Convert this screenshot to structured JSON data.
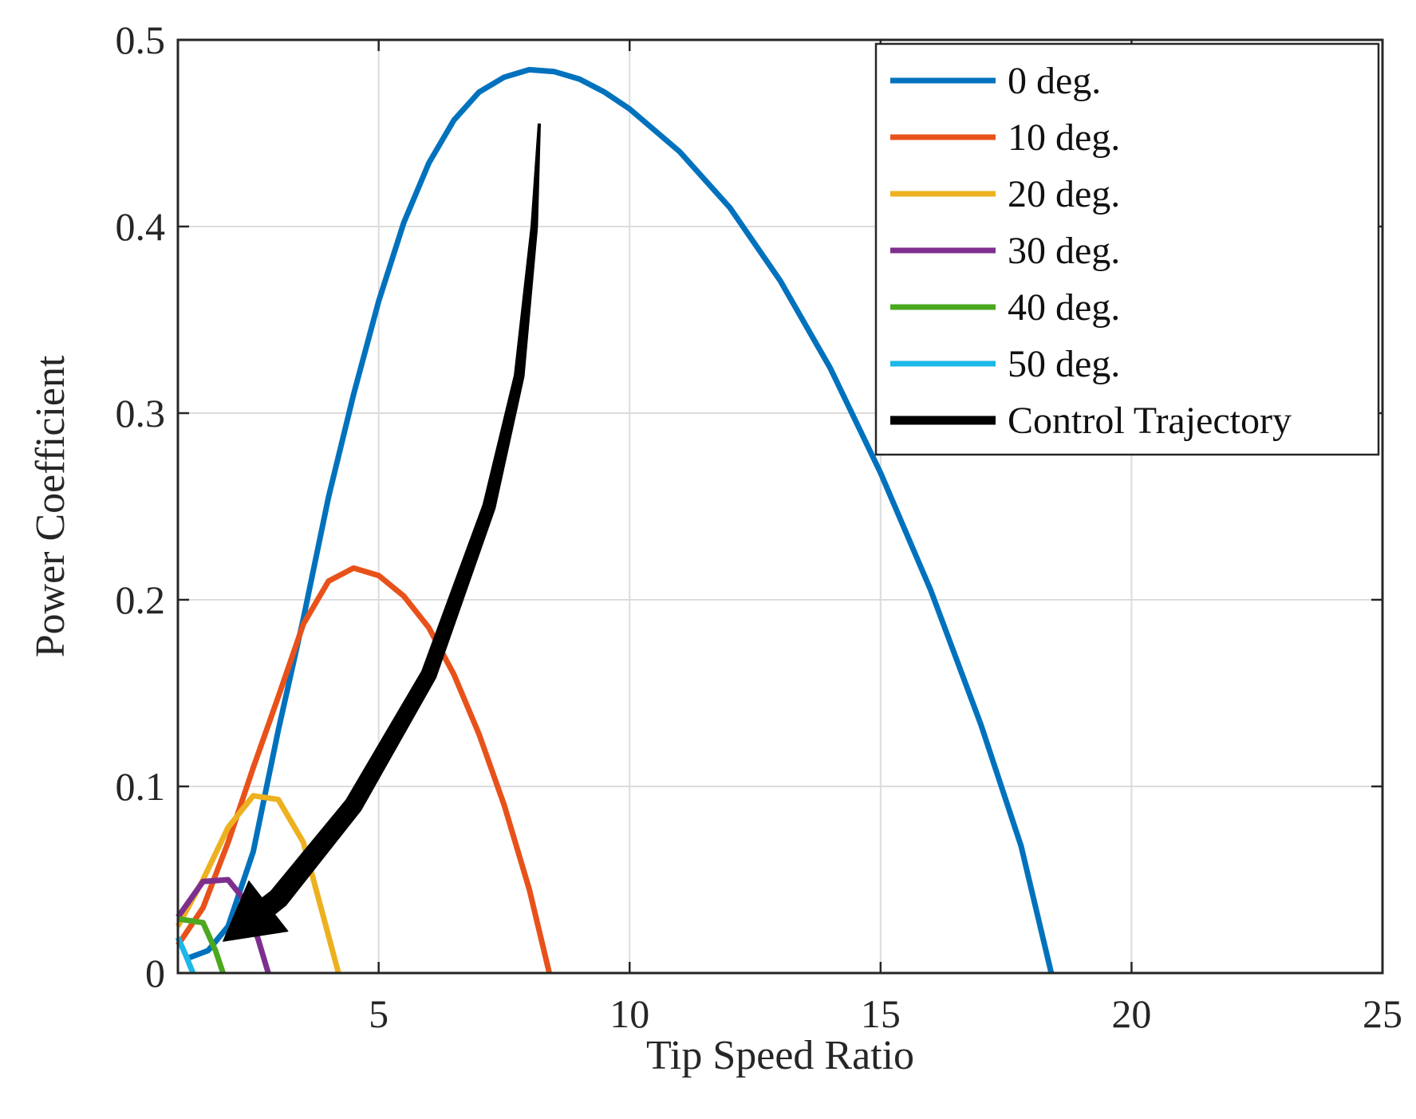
{
  "chart_data": {
    "type": "line",
    "title": "",
    "xlabel": "Tip Speed Ratio",
    "ylabel": "Power Coefficient",
    "xlim": [
      1,
      25
    ],
    "ylim": [
      0,
      0.5
    ],
    "grid": true,
    "legend_position": "top-right",
    "x_ticks": [
      5,
      10,
      15,
      20,
      25
    ],
    "y_ticks": [
      0,
      0.1,
      0.2,
      0.3,
      0.4,
      0.5
    ],
    "x_tick_labels": [
      "5",
      "10",
      "15",
      "20",
      "25"
    ],
    "y_tick_labels": [
      "0",
      "0.1",
      "0.2",
      "0.3",
      "0.4",
      "0.5"
    ],
    "series": [
      {
        "name": "0 deg.",
        "color": "#0072BD",
        "points": [
          [
            1.2,
            0.008
          ],
          [
            1.6,
            0.012
          ],
          [
            2.0,
            0.025
          ],
          [
            2.5,
            0.065
          ],
          [
            3.0,
            0.13
          ],
          [
            3.5,
            0.19
          ],
          [
            4.0,
            0.255
          ],
          [
            4.5,
            0.31
          ],
          [
            5.0,
            0.36
          ],
          [
            5.5,
            0.402
          ],
          [
            6.0,
            0.434
          ],
          [
            6.5,
            0.457
          ],
          [
            7.0,
            0.472
          ],
          [
            7.5,
            0.48
          ],
          [
            8.0,
            0.484
          ],
          [
            8.5,
            0.483
          ],
          [
            9.0,
            0.479
          ],
          [
            9.5,
            0.472
          ],
          [
            10.0,
            0.463
          ],
          [
            11.0,
            0.44
          ],
          [
            12.0,
            0.41
          ],
          [
            13.0,
            0.371
          ],
          [
            14.0,
            0.324
          ],
          [
            15.0,
            0.268
          ],
          [
            16.0,
            0.205
          ],
          [
            17.0,
            0.133
          ],
          [
            17.8,
            0.068
          ],
          [
            18.4,
            0.0
          ]
        ]
      },
      {
        "name": "10 deg.",
        "color": "#E8521A",
        "points": [
          [
            1.0,
            0.015
          ],
          [
            1.5,
            0.035
          ],
          [
            2.0,
            0.07
          ],
          [
            2.5,
            0.11
          ],
          [
            3.0,
            0.148
          ],
          [
            3.5,
            0.187
          ],
          [
            4.0,
            0.21
          ],
          [
            4.5,
            0.217
          ],
          [
            5.0,
            0.213
          ],
          [
            5.5,
            0.202
          ],
          [
            6.0,
            0.185
          ],
          [
            6.5,
            0.16
          ],
          [
            7.0,
            0.128
          ],
          [
            7.5,
            0.09
          ],
          [
            8.0,
            0.045
          ],
          [
            8.4,
            0.0
          ]
        ]
      },
      {
        "name": "20 deg.",
        "color": "#EDB120",
        "points": [
          [
            1.0,
            0.025
          ],
          [
            1.5,
            0.05
          ],
          [
            2.0,
            0.078
          ],
          [
            2.5,
            0.095
          ],
          [
            3.0,
            0.093
          ],
          [
            3.5,
            0.07
          ],
          [
            3.9,
            0.03
          ],
          [
            4.2,
            0.0
          ]
        ]
      },
      {
        "name": "30 deg.",
        "color": "#7E2F8E",
        "points": [
          [
            1.0,
            0.03
          ],
          [
            1.5,
            0.049
          ],
          [
            2.0,
            0.05
          ],
          [
            2.3,
            0.04
          ],
          [
            2.6,
            0.018
          ],
          [
            2.8,
            0.0
          ]
        ]
      },
      {
        "name": "40 deg.",
        "color": "#4BA81F",
        "points": [
          [
            1.0,
            0.029
          ],
          [
            1.5,
            0.027
          ],
          [
            1.75,
            0.012
          ],
          [
            1.9,
            0.0
          ]
        ]
      },
      {
        "name": "50 deg.",
        "color": "#1BB8E8",
        "points": [
          [
            1.0,
            0.019
          ],
          [
            1.15,
            0.01
          ],
          [
            1.3,
            0.0
          ]
        ]
      }
    ],
    "annotations": [
      {
        "name": "Control Trajectory",
        "color": "#000000",
        "type": "arrow",
        "points": [
          [
            8.2,
            0.455
          ],
          [
            8.1,
            0.4
          ],
          [
            7.8,
            0.32
          ],
          [
            7.2,
            0.25
          ],
          [
            6.0,
            0.16
          ],
          [
            4.5,
            0.09
          ],
          [
            3.0,
            0.04
          ],
          [
            1.9,
            0.017
          ]
        ]
      }
    ],
    "legend": [
      "0 deg.",
      "10 deg.",
      "20 deg.",
      "30 deg.",
      "40 deg.",
      "50 deg.",
      "Control Trajectory"
    ]
  }
}
